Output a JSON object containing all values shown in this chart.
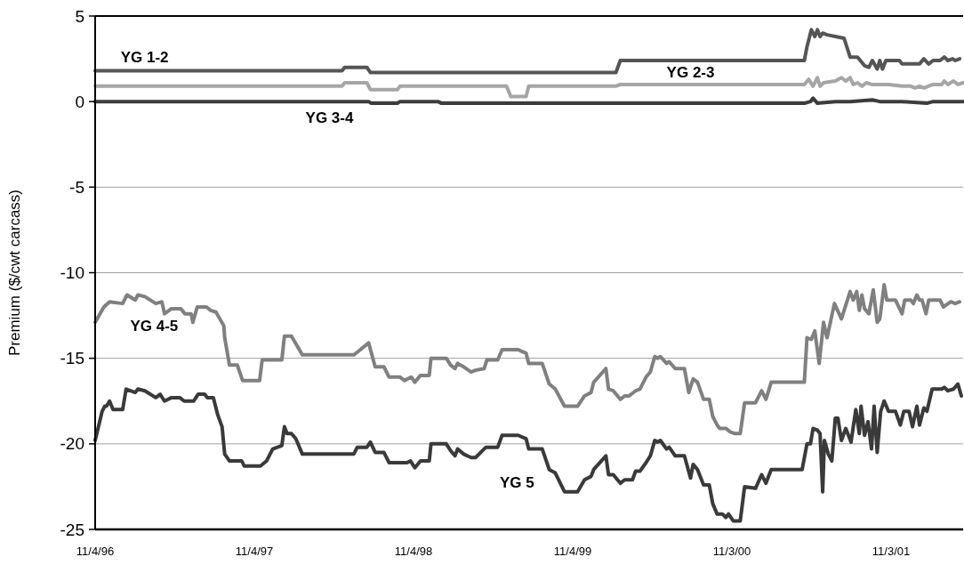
{
  "chart_data": {
    "type": "line",
    "ylabel": "Premium ($/cwt carcass)",
    "xlim": [
      "1996-11-04",
      "2002-04-17"
    ],
    "xticks": [
      {
        "value": "1996-11-04",
        "label": "11/4/96"
      },
      {
        "value": "1997-11-04",
        "label": "11/4/97"
      },
      {
        "value": "1998-11-04",
        "label": "11/4/98"
      },
      {
        "value": "1999-11-04",
        "label": "11/4/99"
      },
      {
        "value": "2000-11-03",
        "label": "11/3/00"
      },
      {
        "value": "2001-11-03",
        "label": "11/3/01"
      }
    ],
    "ylim": [
      -25,
      5
    ],
    "yticks": [
      5,
      0,
      -5,
      -10,
      -15,
      -20,
      -25
    ],
    "grid": "y",
    "line_style": "solid",
    "series": [
      {
        "name": "YG 1-2",
        "color": "#555555",
        "x": [
          "1996-11-04",
          "1998-05-24",
          "1998-05-30",
          "1998-07-20",
          "1998-07-28",
          "2000-02-11",
          "2000-02-21",
          "2001-04-18",
          "2001-04-24",
          "2001-05-04",
          "2001-05-12",
          "2001-05-18",
          "2001-05-24",
          "2001-05-30",
          "2001-06-09",
          "2001-06-28",
          "2001-07-18",
          "2001-08-01",
          "2001-08-18",
          "2001-09-03",
          "2001-09-13",
          "2001-09-21",
          "2001-10-02",
          "2001-10-08",
          "2001-10-14",
          "2001-10-22",
          "2001-11-22",
          "2001-11-28",
          "2002-01-07",
          "2002-01-17",
          "2002-01-28",
          "2002-02-07",
          "2002-02-23",
          "2002-03-05",
          "2002-03-13",
          "2002-03-24",
          "2002-03-30",
          "2002-04-09"
        ],
        "values": [
          1.8,
          1.8,
          2.0,
          2.0,
          1.7,
          1.7,
          2.4,
          2.4,
          3.2,
          4.2,
          3.8,
          4.2,
          3.8,
          4.0,
          3.9,
          3.8,
          3.7,
          2.6,
          2.6,
          2.1,
          2.0,
          2.4,
          1.9,
          2.4,
          1.9,
          2.4,
          2.4,
          2.2,
          2.2,
          2.5,
          2.2,
          2.4,
          2.4,
          2.6,
          2.4,
          2.5,
          2.4,
          2.5
        ]
      },
      {
        "name": "YG 2-3",
        "color": "#a6a6a6",
        "x": [
          "1996-11-04",
          "1998-05-24",
          "1998-05-30",
          "1998-07-20",
          "1998-07-28",
          "1998-09-28",
          "1998-10-04",
          "1999-06-05",
          "1999-06-15",
          "1999-07-20",
          "1999-07-26",
          "2000-02-11",
          "2000-02-21",
          "2001-04-18",
          "2001-04-28",
          "2001-05-08",
          "2001-05-18",
          "2001-05-24",
          "2001-06-01",
          "2001-06-28",
          "2001-07-12",
          "2001-07-22",
          "2001-08-01",
          "2001-08-08",
          "2001-08-18",
          "2001-08-28",
          "2001-09-07",
          "2001-09-19",
          "2001-10-28",
          "2001-11-28",
          "2001-12-18",
          "2001-12-28",
          "2002-01-07",
          "2002-01-17",
          "2002-02-07",
          "2002-02-27",
          "2002-03-05",
          "2002-03-13",
          "2002-03-26",
          "2002-04-05",
          "2002-04-17"
        ],
        "values": [
          0.9,
          0.9,
          1.1,
          1.1,
          0.7,
          0.7,
          0.9,
          0.9,
          0.3,
          0.3,
          0.9,
          0.9,
          1.0,
          1.0,
          1.3,
          0.9,
          1.4,
          0.9,
          1.1,
          1.2,
          1.4,
          1.2,
          1.4,
          1.0,
          1.1,
          0.9,
          1.1,
          1.0,
          1.0,
          0.9,
          0.9,
          0.8,
          0.9,
          0.8,
          1.0,
          1.0,
          1.2,
          1.0,
          1.2,
          1.0,
          1.1
        ]
      },
      {
        "name": "YG 3-4",
        "color": "#3c3c3c",
        "x": [
          "1996-11-04",
          "1998-07-24",
          "1998-07-30",
          "1998-09-28",
          "1998-10-04",
          "1998-12-30",
          "1999-01-07",
          "2001-04-18",
          "2001-05-02",
          "2001-05-08",
          "2001-05-18",
          "2001-06-28",
          "2001-08-01",
          "2001-09-21",
          "2001-10-08",
          "2001-11-28",
          "2002-01-24",
          "2002-02-07",
          "2002-04-17"
        ],
        "values": [
          0,
          0,
          -0.1,
          -0.1,
          0,
          0,
          -0.1,
          -0.1,
          0,
          0.2,
          -0.1,
          0,
          0,
          0.1,
          0,
          0,
          -0.1,
          0,
          0
        ]
      },
      {
        "name": "YG 4-5",
        "color": "#808080",
        "x": [
          "1996-11-04",
          "1996-11-24",
          "1996-12-07",
          "1997-01-06",
          "1997-01-16",
          "1997-02-04",
          "1997-02-10",
          "1997-02-26",
          "1997-03-23",
          "1997-04-06",
          "1997-04-12",
          "1997-04-28",
          "1997-05-19",
          "1997-05-29",
          "1997-06-12",
          "1997-06-16",
          "1997-06-26",
          "1997-07-17",
          "1997-07-27",
          "1997-08-08",
          "1997-08-26",
          "1997-08-28",
          "1997-09-08",
          "1997-09-26",
          "1997-10-08",
          "1997-11-16",
          "1997-11-22",
          "1998-01-06",
          "1998-01-12",
          "1998-01-28",
          "1998-02-22",
          "1998-06-20",
          "1998-06-30",
          "1998-07-24",
          "1998-08-08",
          "1998-08-28",
          "1998-09-09",
          "1998-10-04",
          "1998-10-14",
          "1998-10-30",
          "1998-11-07",
          "1998-11-20",
          "1998-12-10",
          "1998-12-14",
          "1999-01-18",
          "1999-01-28",
          "1999-02-07",
          "1999-02-13",
          "1999-02-27",
          "1999-03-16",
          "1999-03-26",
          "1999-04-15",
          "1999-04-21",
          "1999-05-16",
          "1999-05-26",
          "1999-07-02",
          "1999-07-10",
          "1999-07-20",
          "1999-07-26",
          "1999-08-26",
          "1999-09-11",
          "1999-09-25",
          "1999-10-16",
          "1999-11-15",
          "1999-12-01",
          "1999-12-16",
          "1999-12-22",
          "2000-01-19",
          "2000-01-25",
          "2000-02-05",
          "2000-02-21",
          "2000-03-02",
          "2000-03-12",
          "2000-03-27",
          "2000-04-06",
          "2000-04-20",
          "2000-04-30",
          "2000-05-10",
          "2000-05-16",
          "2000-05-23",
          "2000-06-06",
          "2000-06-12",
          "2000-06-26",
          "2000-07-17",
          "2000-07-27",
          "2000-08-06",
          "2000-08-16",
          "2000-08-30",
          "2000-09-12",
          "2000-09-20",
          "2000-09-30",
          "2000-10-06",
          "2000-10-20",
          "2000-10-30",
          "2000-11-10",
          "2000-11-22",
          "2000-12-02",
          "2000-12-27",
          "2001-01-10",
          "2001-01-20",
          "2001-02-01",
          "2001-04-18",
          "2001-04-24",
          "2001-05-04",
          "2001-05-12",
          "2001-05-22",
          "2001-06-01",
          "2001-06-09",
          "2001-06-26",
          "2001-07-12",
          "2001-08-01",
          "2001-08-08",
          "2001-08-16",
          "2001-08-22",
          "2001-08-28",
          "2001-09-03",
          "2001-09-13",
          "2001-09-23",
          "2001-10-02",
          "2001-10-08",
          "2001-10-18",
          "2001-10-24",
          "2001-11-13",
          "2001-11-28",
          "2001-12-04",
          "2001-12-18",
          "2001-12-24",
          "2002-01-01",
          "2002-01-07",
          "2002-01-13",
          "2002-01-22",
          "2002-01-28",
          "2002-02-23",
          "2002-03-03",
          "2002-03-20",
          "2002-03-30",
          "2002-04-09"
        ],
        "values": [
          -12.9,
          -12.0,
          -11.7,
          -11.8,
          -11.3,
          -11.6,
          -11.3,
          -11.4,
          -11.8,
          -11.7,
          -12.4,
          -12.1,
          -12.1,
          -12.4,
          -12.4,
          -12.9,
          -12.0,
          -12.0,
          -12.2,
          -12.3,
          -13.1,
          -13.8,
          -15.4,
          -15.4,
          -16.3,
          -16.3,
          -15.1,
          -15.1,
          -13.7,
          -13.7,
          -14.8,
          -14.8,
          -14.6,
          -14.1,
          -15.5,
          -15.5,
          -16.1,
          -16.1,
          -16.3,
          -16.1,
          -16.4,
          -16.0,
          -16.0,
          -15.0,
          -15.0,
          -15.4,
          -15.6,
          -15.3,
          -15.5,
          -15.8,
          -15.7,
          -15.6,
          -15.1,
          -15.1,
          -14.5,
          -14.5,
          -14.6,
          -14.7,
          -15.3,
          -15.3,
          -16.5,
          -16.8,
          -17.8,
          -17.8,
          -17.2,
          -17.0,
          -16.4,
          -15.6,
          -16.8,
          -16.9,
          -17.4,
          -17.2,
          -17.2,
          -16.9,
          -16.8,
          -16.1,
          -15.8,
          -14.9,
          -15.0,
          -14.9,
          -15.3,
          -15.2,
          -15.6,
          -15.6,
          -17.0,
          -16.2,
          -16.4,
          -17.4,
          -17.4,
          -18.4,
          -18.9,
          -19.1,
          -19.1,
          -19.3,
          -19.4,
          -19.4,
          -17.6,
          -17.6,
          -16.9,
          -17.4,
          -16.4,
          -16.4,
          -13.8,
          -13.9,
          -13.4,
          -15.3,
          -12.9,
          -13.8,
          -11.8,
          -12.7,
          -11.1,
          -11.6,
          -11.1,
          -12.2,
          -11.3,
          -12.1,
          -12.4,
          -11.0,
          -12.9,
          -12.7,
          -10.7,
          -11.6,
          -11.6,
          -12.4,
          -11.6,
          -11.6,
          -11.8,
          -11.3,
          -11.6,
          -11.6,
          -12.4,
          -11.6,
          -11.6,
          -12.0,
          -11.7,
          -11.8,
          -11.7
        ]
      },
      {
        "name": "YG 5",
        "color": "#3a3a3a",
        "x": [
          "1996-11-04",
          "1996-11-20",
          "1996-11-26",
          "1996-11-30",
          "1996-12-07",
          "1996-12-15",
          "1997-01-06",
          "1997-01-14",
          "1997-02-04",
          "1997-02-10",
          "1997-02-26",
          "1997-03-23",
          "1997-04-02",
          "1997-04-12",
          "1997-04-28",
          "1997-05-17",
          "1997-05-27",
          "1997-06-18",
          "1997-06-28",
          "1997-07-13",
          "1997-07-19",
          "1997-08-02",
          "1997-08-12",
          "1997-08-22",
          "1997-08-28",
          "1997-09-08",
          "1997-10-06",
          "1997-10-12",
          "1997-11-18",
          "1997-12-02",
          "1997-12-16",
          "1998-01-06",
          "1998-01-12",
          "1998-01-18",
          "1998-01-28",
          "1998-02-07",
          "1998-02-22",
          "1998-06-20",
          "1998-06-28",
          "1998-07-20",
          "1998-07-28",
          "1998-08-08",
          "1998-08-28",
          "1998-09-09",
          "1998-10-20",
          "1998-10-28",
          "1998-11-07",
          "1998-11-20",
          "1998-12-10",
          "1998-12-14",
          "1999-01-18",
          "1999-01-28",
          "1999-02-07",
          "1999-02-13",
          "1999-02-27",
          "1999-03-16",
          "1999-03-26",
          "1999-04-19",
          "1999-05-16",
          "1999-05-26",
          "1999-07-02",
          "1999-07-20",
          "1999-07-26",
          "1999-08-26",
          "1999-09-11",
          "1999-09-25",
          "1999-10-16",
          "1999-11-15",
          "1999-12-01",
          "1999-12-16",
          "1999-12-22",
          "2000-01-19",
          "2000-01-25",
          "2000-02-05",
          "2000-02-21",
          "2000-03-02",
          "2000-03-20",
          "2000-03-27",
          "2000-04-06",
          "2000-04-20",
          "2000-04-30",
          "2000-05-10",
          "2000-05-16",
          "2000-05-23",
          "2000-06-06",
          "2000-06-12",
          "2000-06-26",
          "2000-07-17",
          "2000-07-31",
          "2000-08-06",
          "2000-08-16",
          "2000-08-30",
          "2000-09-12",
          "2000-09-20",
          "2000-09-30",
          "2000-10-12",
          "2000-10-20",
          "2000-10-26",
          "2000-11-06",
          "2000-11-22",
          "2000-12-02",
          "2000-12-27",
          "2001-01-10",
          "2001-01-20",
          "2001-02-01",
          "2001-04-13",
          "2001-04-24",
          "2001-05-02",
          "2001-05-08",
          "2001-05-18",
          "2001-05-24",
          "2001-05-30",
          "2001-06-03",
          "2001-06-12",
          "2001-06-20",
          "2001-06-28",
          "2001-07-04",
          "2001-07-12",
          "2001-07-22",
          "2001-08-03",
          "2001-08-14",
          "2001-08-22",
          "2001-08-26",
          "2001-09-03",
          "2001-09-11",
          "2001-09-19",
          "2001-09-25",
          "2001-10-02",
          "2001-10-10",
          "2001-10-18",
          "2001-10-28",
          "2001-11-13",
          "2001-11-24",
          "2001-12-02",
          "2001-12-14",
          "2001-12-22",
          "2002-01-01",
          "2002-01-07",
          "2002-01-17",
          "2002-01-24",
          "2002-02-05",
          "2002-02-27",
          "2002-03-05",
          "2002-03-13",
          "2002-03-26",
          "2002-04-05",
          "2002-04-13"
        ],
        "values": [
          -19.8,
          -18.1,
          -17.8,
          -17.8,
          -17.5,
          -18.0,
          -18.0,
          -16.8,
          -17.0,
          -16.8,
          -16.9,
          -17.3,
          -17.1,
          -17.5,
          -17.3,
          -17.3,
          -17.5,
          -17.5,
          -17.1,
          -17.1,
          -17.3,
          -17.3,
          -18.3,
          -19.0,
          -20.6,
          -21.0,
          -21.0,
          -21.3,
          -21.3,
          -21.0,
          -20.3,
          -20.1,
          -19.0,
          -19.4,
          -19.4,
          -19.7,
          -20.6,
          -20.6,
          -20.2,
          -20.2,
          -19.9,
          -20.5,
          -20.5,
          -21.1,
          -21.1,
          -21.0,
          -21.4,
          -21.0,
          -21.0,
          -20.0,
          -20.0,
          -20.4,
          -20.7,
          -20.3,
          -20.6,
          -20.8,
          -20.8,
          -20.2,
          -20.2,
          -19.5,
          -19.5,
          -19.7,
          -20.3,
          -20.3,
          -21.5,
          -21.7,
          -22.8,
          -22.8,
          -22.1,
          -21.9,
          -21.5,
          -20.7,
          -21.8,
          -21.8,
          -22.3,
          -22.1,
          -22.1,
          -21.6,
          -21.6,
          -21.1,
          -20.7,
          -19.8,
          -19.9,
          -19.8,
          -20.3,
          -20.2,
          -20.7,
          -20.7,
          -22.0,
          -21.2,
          -21.5,
          -22.4,
          -22.4,
          -23.5,
          -24.1,
          -24.1,
          -24.3,
          -24.1,
          -24.5,
          -24.5,
          -22.5,
          -22.6,
          -21.8,
          -22.3,
          -21.5,
          -21.5,
          -20.0,
          -20.0,
          -19.1,
          -19.2,
          -19.4,
          -22.8,
          -19.8,
          -20.6,
          -21.0,
          -18.5,
          -18.5,
          -19.8,
          -19.1,
          -19.9,
          -18.0,
          -19.4,
          -17.8,
          -19.5,
          -18.7,
          -20.3,
          -17.8,
          -20.5,
          -18.1,
          -17.5,
          -18.1,
          -18.1,
          -18.9,
          -18.1,
          -18.1,
          -19.0,
          -17.8,
          -18.9,
          -17.9,
          -18.1,
          -16.8,
          -16.8,
          -16.7,
          -16.9,
          -16.8,
          -16.5,
          -17.2
        ]
      }
    ]
  }
}
